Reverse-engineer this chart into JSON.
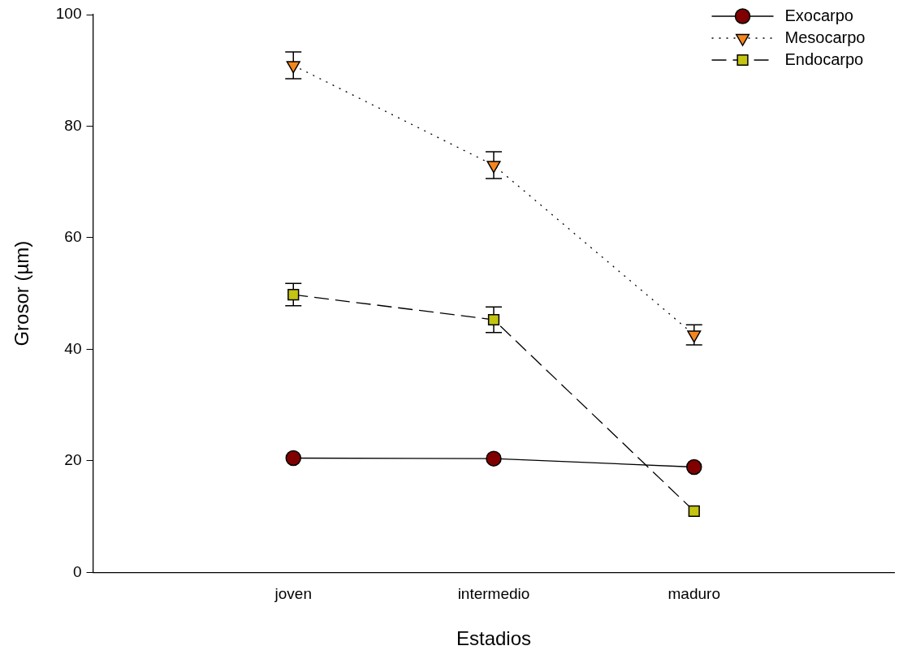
{
  "chart_data": {
    "type": "line",
    "xlabel": "Estadios",
    "ylabel": "Grosor (µm)",
    "categories": [
      "joven",
      "intermedio",
      "maduro"
    ],
    "ylim": [
      0,
      100
    ],
    "yticks": [
      0,
      20,
      40,
      60,
      80,
      100
    ],
    "grid": false,
    "legend": "top right",
    "series": [
      {
        "name": "Exocarpo",
        "color": "#800000",
        "marker": "circle",
        "line_style": "solid",
        "values": [
          20.5,
          20.4,
          18.9
        ],
        "errors": [
          null,
          null,
          null
        ]
      },
      {
        "name": "Mesocarpo",
        "color": "#f5861f",
        "marker": "triangle",
        "line_style": "dotted",
        "values": [
          90.9,
          73.0,
          42.6
        ],
        "errors": [
          2.4,
          2.4,
          1.8
        ]
      },
      {
        "name": "Endocarpo",
        "color": "#c4c412",
        "marker": "square",
        "line_style": "dashed",
        "values": [
          49.8,
          45.3,
          11.0
        ],
        "errors": [
          2.0,
          2.3,
          null
        ]
      }
    ]
  }
}
